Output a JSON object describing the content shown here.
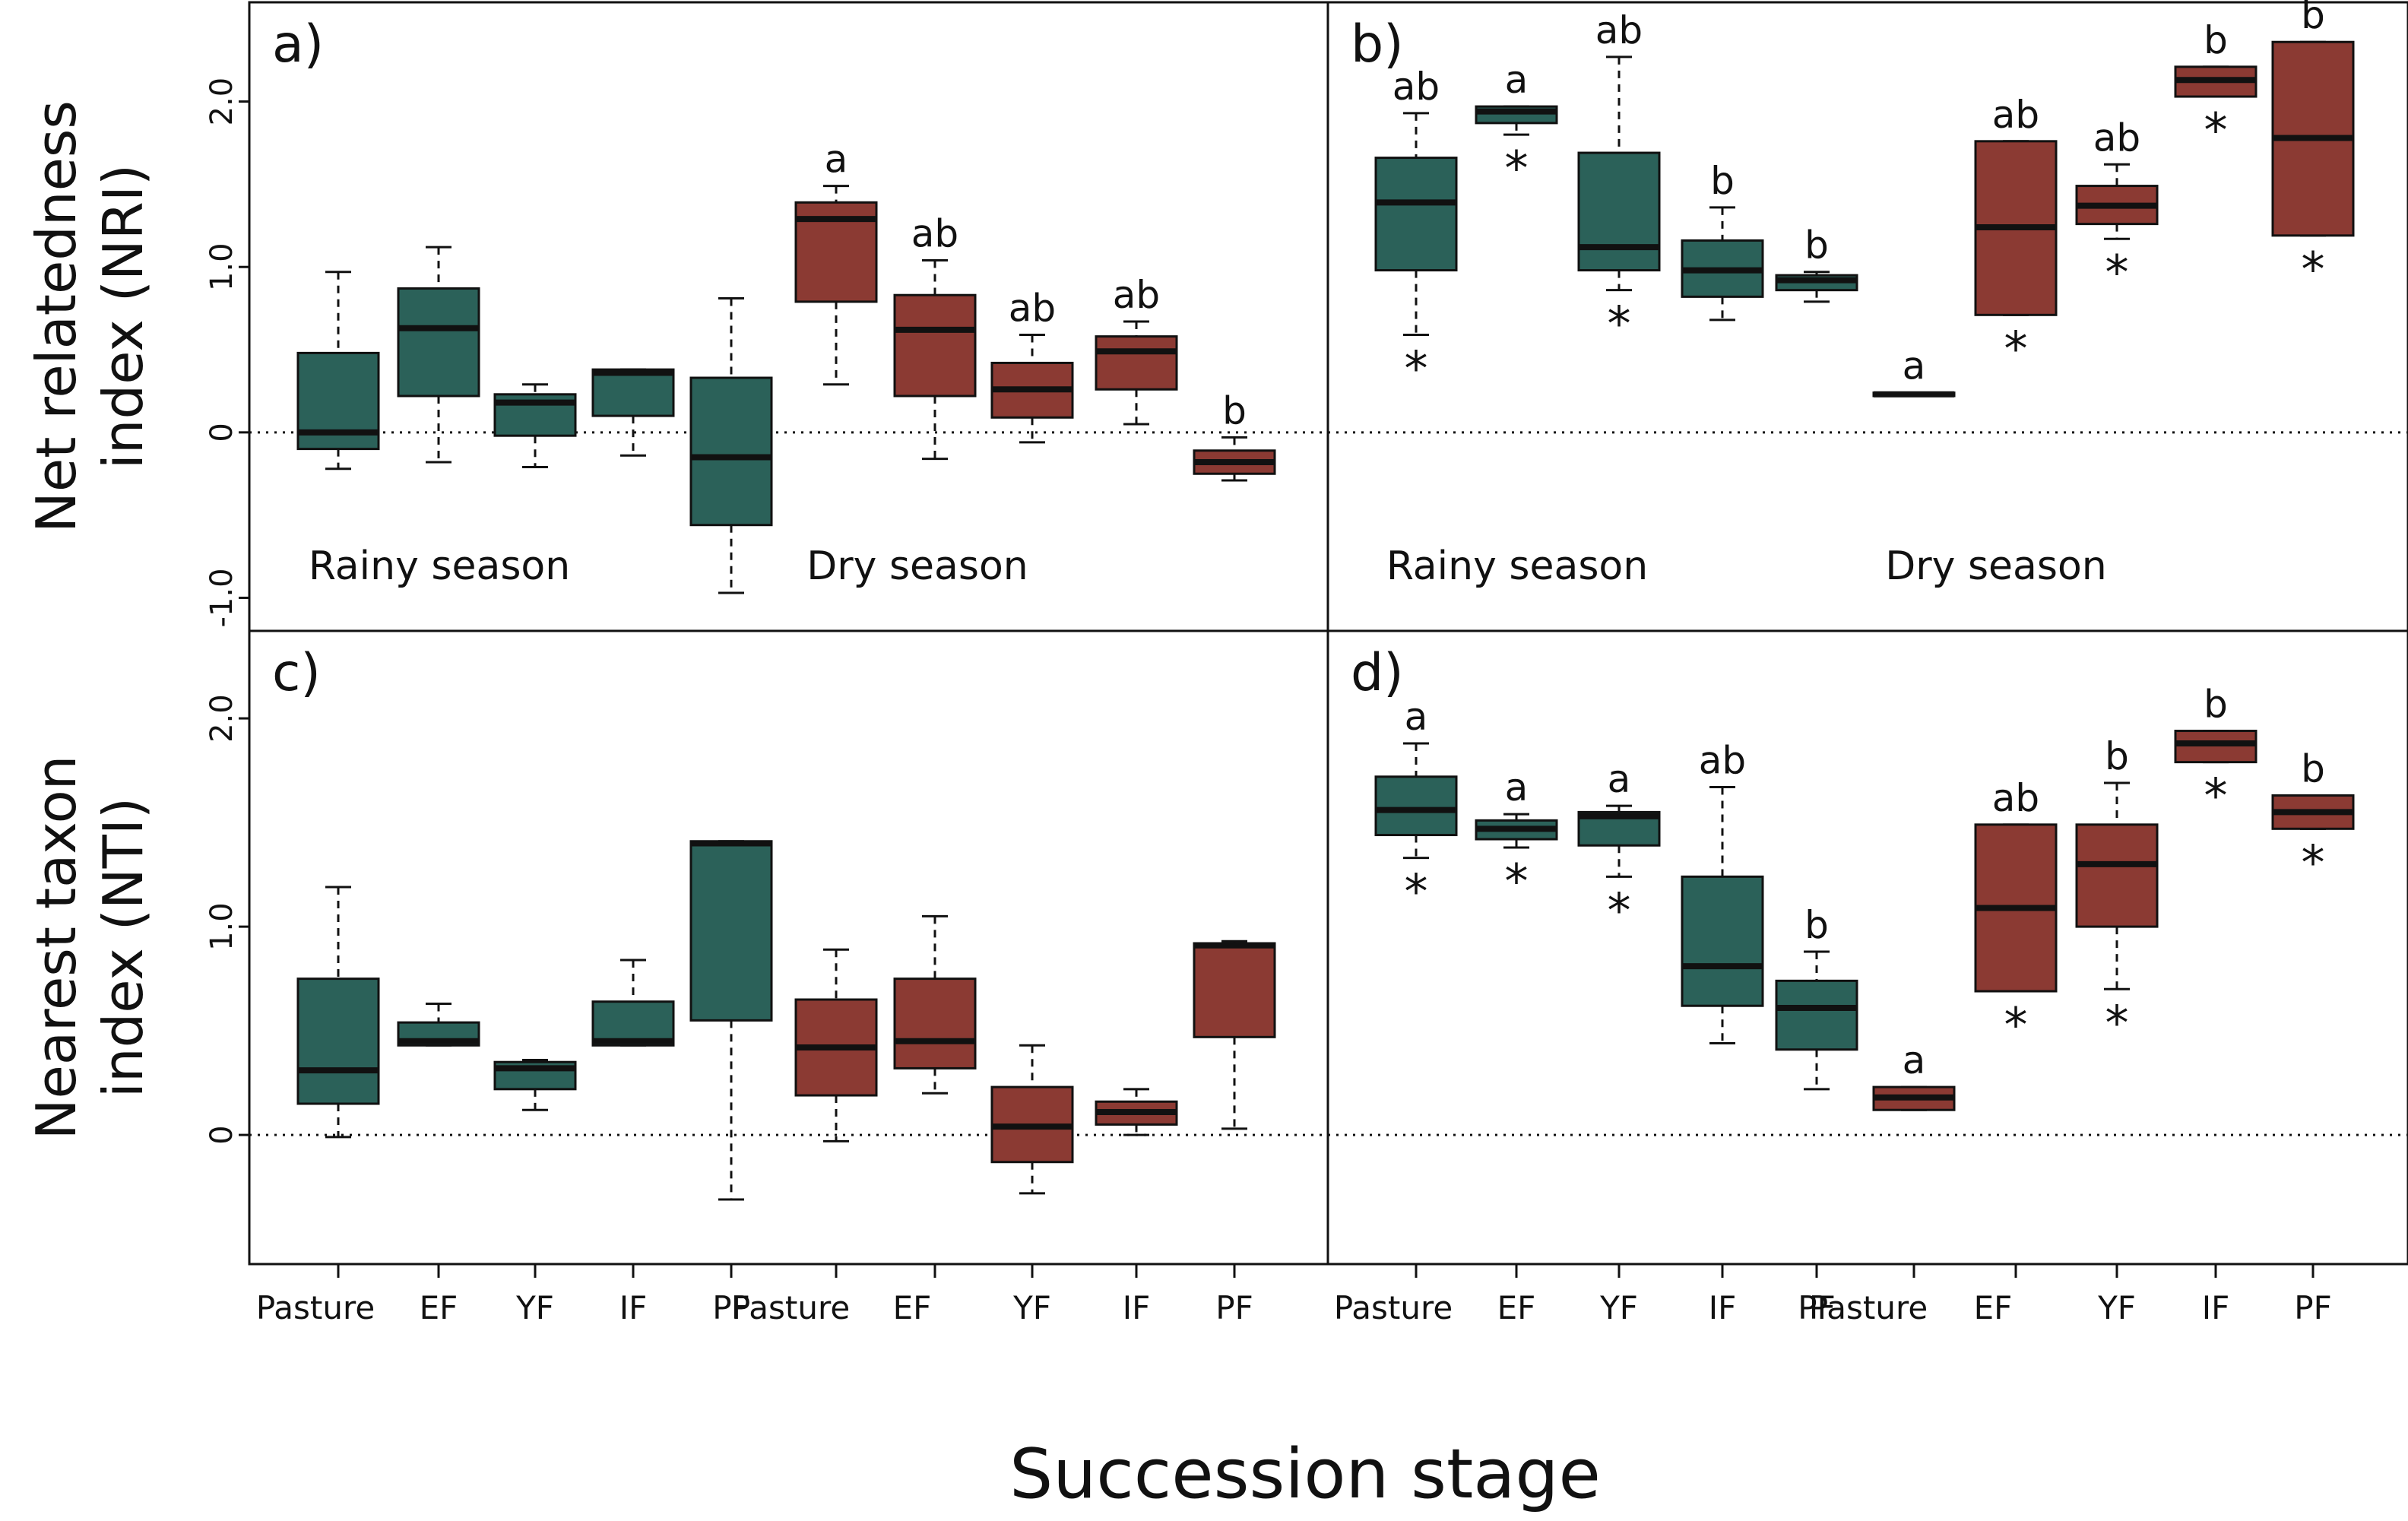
{
  "figure": {
    "xlabel": "Succession stage",
    "colors": {
      "rainy": "#2b6159",
      "dry": "#8b3a33",
      "stroke": "#111111"
    },
    "categories": [
      "Pasture",
      "EF",
      "YF",
      "IF",
      "PF",
      "Pasture",
      "EF",
      "YF",
      "IF",
      "PF"
    ],
    "seasons": [
      "rainy",
      "rainy",
      "rainy",
      "rainy",
      "rainy",
      "dry",
      "dry",
      "dry",
      "dry",
      "dry"
    ],
    "season_labels": {
      "rainy": "Rainy season",
      "dry": "Dry season"
    },
    "rows": [
      {
        "ylabel_line1": "Net relatedness",
        "ylabel_line2": "index (NRI)",
        "ylim": [
          -1.2,
          2.6
        ],
        "yticks": [
          -1.0,
          0,
          1.0,
          2.0
        ],
        "ytick_labels": [
          "-1.0",
          "0",
          "1.0",
          "2.0"
        ]
      },
      {
        "ylabel_line1": "Nearest taxon",
        "ylabel_line2": "index (NTI)",
        "ylim": [
          -0.62,
          2.42
        ],
        "yticks": [
          0,
          1.0,
          2.0
        ],
        "ytick_labels": [
          "0",
          "1.0",
          "2.0"
        ]
      }
    ]
  },
  "chart_data": [
    {
      "type": "boxplot",
      "panel": "a)",
      "row": 0,
      "col": 0,
      "ylabel": "Net relatedness index (NRI)",
      "reference_line": 0,
      "boxes": [
        {
          "category": "Pasture",
          "season": "rainy",
          "min": -0.22,
          "q1": -0.1,
          "median": 0.0,
          "q3": 0.48,
          "max": 0.97,
          "letter": "",
          "star": false
        },
        {
          "category": "EF",
          "season": "rainy",
          "min": -0.18,
          "q1": 0.22,
          "median": 0.63,
          "q3": 0.87,
          "max": 1.12,
          "letter": "",
          "star": false
        },
        {
          "category": "YF",
          "season": "rainy",
          "min": -0.21,
          "q1": -0.02,
          "median": 0.18,
          "q3": 0.23,
          "max": 0.29,
          "letter": "",
          "star": false
        },
        {
          "category": "IF",
          "season": "rainy",
          "min": -0.14,
          "q1": 0.1,
          "median": 0.36,
          "q3": 0.38,
          "max": 0.38,
          "letter": "",
          "star": false
        },
        {
          "category": "PF",
          "season": "rainy",
          "min": -0.97,
          "q1": -0.56,
          "median": -0.15,
          "q3": 0.33,
          "max": 0.81,
          "letter": "",
          "star": false
        },
        {
          "category": "Pasture",
          "season": "dry",
          "min": 0.29,
          "q1": 0.79,
          "median": 1.29,
          "q3": 1.39,
          "max": 1.49,
          "letter": "a",
          "star": false
        },
        {
          "category": "EF",
          "season": "dry",
          "min": -0.16,
          "q1": 0.22,
          "median": 0.62,
          "q3": 0.83,
          "max": 1.04,
          "letter": "ab",
          "star": false
        },
        {
          "category": "YF",
          "season": "dry",
          "min": -0.06,
          "q1": 0.09,
          "median": 0.26,
          "q3": 0.42,
          "max": 0.59,
          "letter": "ab",
          "star": false
        },
        {
          "category": "IF",
          "season": "dry",
          "min": 0.05,
          "q1": 0.26,
          "median": 0.49,
          "q3": 0.58,
          "max": 0.67,
          "letter": "ab",
          "star": false
        },
        {
          "category": "PF",
          "season": "dry",
          "min": -0.29,
          "q1": -0.25,
          "median": -0.18,
          "q3": -0.11,
          "max": -0.03,
          "letter": "b",
          "star": false
        }
      ]
    },
    {
      "type": "boxplot",
      "panel": "b)",
      "row": 0,
      "col": 1,
      "ylabel": "Net relatedness index (NRI)",
      "reference_line": 0,
      "boxes": [
        {
          "category": "Pasture",
          "season": "rainy",
          "min": 0.59,
          "q1": 0.98,
          "median": 1.39,
          "q3": 1.66,
          "max": 1.93,
          "letter": "ab",
          "star": true
        },
        {
          "category": "EF",
          "season": "rainy",
          "min": 1.8,
          "q1": 1.87,
          "median": 1.94,
          "q3": 1.97,
          "max": 1.97,
          "letter": "a",
          "star": true
        },
        {
          "category": "YF",
          "season": "rainy",
          "min": 0.86,
          "q1": 0.98,
          "median": 1.12,
          "q3": 1.69,
          "max": 2.27,
          "letter": "ab",
          "star": true
        },
        {
          "category": "IF",
          "season": "rainy",
          "min": 0.68,
          "q1": 0.82,
          "median": 0.98,
          "q3": 1.16,
          "max": 1.36,
          "letter": "b",
          "star": false
        },
        {
          "category": "PF",
          "season": "rainy",
          "min": 0.79,
          "q1": 0.86,
          "median": 0.92,
          "q3": 0.95,
          "max": 0.97,
          "letter": "b",
          "star": false
        },
        {
          "category": "Pasture",
          "season": "dry",
          "min": 0.22,
          "q1": 0.22,
          "median": 0.23,
          "q3": 0.24,
          "max": 0.24,
          "letter": "a",
          "star": false
        },
        {
          "category": "EF",
          "season": "dry",
          "min": 0.71,
          "q1": 0.71,
          "median": 1.24,
          "q3": 1.76,
          "max": 1.76,
          "letter": "ab",
          "star": true
        },
        {
          "category": "YF",
          "season": "dry",
          "min": 1.17,
          "q1": 1.26,
          "median": 1.37,
          "q3": 1.49,
          "max": 1.62,
          "letter": "ab",
          "star": true
        },
        {
          "category": "IF",
          "season": "dry",
          "min": 2.03,
          "q1": 2.03,
          "median": 2.13,
          "q3": 2.21,
          "max": 2.21,
          "letter": "b",
          "star": true
        },
        {
          "category": "PF",
          "season": "dry",
          "min": 1.19,
          "q1": 1.19,
          "median": 1.78,
          "q3": 2.36,
          "max": 2.36,
          "letter": "b",
          "star": true
        }
      ]
    },
    {
      "type": "boxplot",
      "panel": "c)",
      "row": 1,
      "col": 0,
      "ylabel": "Nearest taxon index (NTI)",
      "reference_line": 0,
      "boxes": [
        {
          "category": "Pasture",
          "season": "rainy",
          "min": -0.01,
          "q1": 0.15,
          "median": 0.31,
          "q3": 0.75,
          "max": 1.19,
          "letter": "",
          "star": false
        },
        {
          "category": "EF",
          "season": "rainy",
          "min": 0.43,
          "q1": 0.43,
          "median": 0.45,
          "q3": 0.54,
          "max": 0.63,
          "letter": "",
          "star": false
        },
        {
          "category": "YF",
          "season": "rainy",
          "min": 0.12,
          "q1": 0.22,
          "median": 0.32,
          "q3": 0.35,
          "max": 0.36,
          "letter": "",
          "star": false
        },
        {
          "category": "IF",
          "season": "rainy",
          "min": 0.43,
          "q1": 0.43,
          "median": 0.45,
          "q3": 0.64,
          "max": 0.84,
          "letter": "",
          "star": false
        },
        {
          "category": "PF",
          "season": "rainy",
          "min": -0.31,
          "q1": 0.55,
          "median": 1.4,
          "q3": 1.41,
          "max": 1.41,
          "letter": "",
          "star": false
        },
        {
          "category": "Pasture",
          "season": "dry",
          "min": -0.03,
          "q1": 0.19,
          "median": 0.42,
          "q3": 0.65,
          "max": 0.89,
          "letter": "",
          "star": false
        },
        {
          "category": "EF",
          "season": "dry",
          "min": 0.2,
          "q1": 0.32,
          "median": 0.45,
          "q3": 0.75,
          "max": 1.05,
          "letter": "",
          "star": false
        },
        {
          "category": "YF",
          "season": "dry",
          "min": -0.28,
          "q1": -0.13,
          "median": 0.04,
          "q3": 0.23,
          "max": 0.43,
          "letter": "",
          "star": false
        },
        {
          "category": "IF",
          "season": "dry",
          "min": 0.0,
          "q1": 0.05,
          "median": 0.11,
          "q3": 0.16,
          "max": 0.22,
          "letter": "",
          "star": false
        },
        {
          "category": "PF",
          "season": "dry",
          "min": 0.03,
          "q1": 0.47,
          "median": 0.91,
          "q3": 0.92,
          "max": 0.93,
          "letter": "",
          "star": false
        }
      ]
    },
    {
      "type": "boxplot",
      "panel": "d)",
      "row": 1,
      "col": 1,
      "ylabel": "Nearest taxon index (NTI)",
      "reference_line": 0,
      "boxes": [
        {
          "category": "Pasture",
          "season": "rainy",
          "min": 1.33,
          "q1": 1.44,
          "median": 1.56,
          "q3": 1.72,
          "max": 1.88,
          "letter": "a",
          "star": true
        },
        {
          "category": "EF",
          "season": "rainy",
          "min": 1.38,
          "q1": 1.42,
          "median": 1.47,
          "q3": 1.51,
          "max": 1.54,
          "letter": "a",
          "star": true
        },
        {
          "category": "YF",
          "season": "rainy",
          "min": 1.24,
          "q1": 1.39,
          "median": 1.53,
          "q3": 1.55,
          "max": 1.58,
          "letter": "a",
          "star": true
        },
        {
          "category": "IF",
          "season": "rainy",
          "min": 0.44,
          "q1": 0.62,
          "median": 0.81,
          "q3": 1.24,
          "max": 1.67,
          "letter": "ab",
          "star": false
        },
        {
          "category": "PF",
          "season": "rainy",
          "min": 0.22,
          "q1": 0.41,
          "median": 0.61,
          "q3": 0.74,
          "max": 0.88,
          "letter": "b",
          "star": false
        },
        {
          "category": "Pasture",
          "season": "dry",
          "min": 0.12,
          "q1": 0.12,
          "median": 0.18,
          "q3": 0.23,
          "max": 0.23,
          "letter": "a",
          "star": false
        },
        {
          "category": "EF",
          "season": "dry",
          "min": 0.69,
          "q1": 0.69,
          "median": 1.09,
          "q3": 1.49,
          "max": 1.49,
          "letter": "ab",
          "star": true
        },
        {
          "category": "YF",
          "season": "dry",
          "min": 0.7,
          "q1": 1.0,
          "median": 1.3,
          "q3": 1.49,
          "max": 1.69,
          "letter": "b",
          "star": true
        },
        {
          "category": "IF",
          "season": "dry",
          "min": 1.79,
          "q1": 1.79,
          "median": 1.88,
          "q3": 1.94,
          "max": 1.94,
          "letter": "b",
          "star": true
        },
        {
          "category": "PF",
          "season": "dry",
          "min": 1.47,
          "q1": 1.47,
          "median": 1.55,
          "q3": 1.63,
          "max": 1.63,
          "letter": "b",
          "star": true
        }
      ]
    }
  ]
}
